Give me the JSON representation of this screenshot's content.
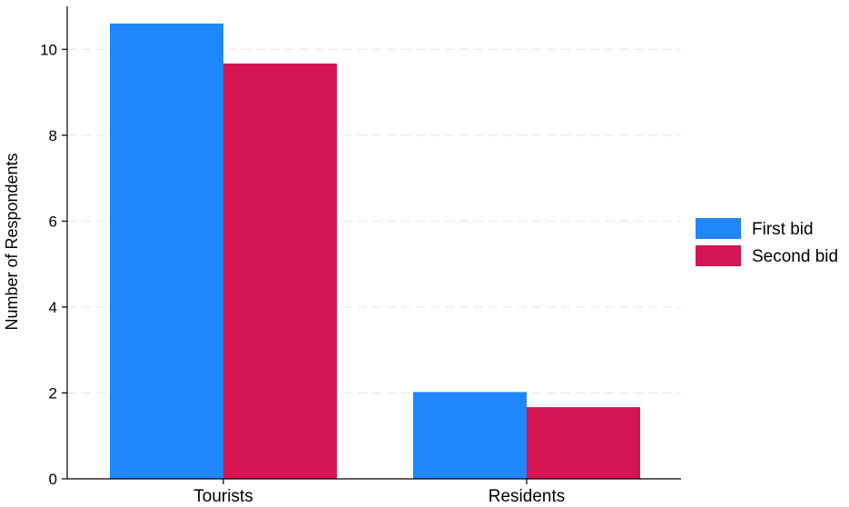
{
  "chart_data": {
    "type": "bar",
    "categories": [
      "Tourists",
      "Residents"
    ],
    "series": [
      {
        "name": "First bid",
        "values": [
          10.6,
          2.02
        ],
        "color": "#1f86fb"
      },
      {
        "name": "Second bid",
        "values": [
          9.67,
          1.67
        ],
        "color": "#d51453"
      }
    ],
    "title": "",
    "xlabel": "",
    "ylabel": "Number of Respondents",
    "ylim": [
      0,
      11
    ],
    "yticks": [
      0,
      2,
      4,
      6,
      8,
      10
    ],
    "grid": true,
    "legend_position": "right"
  }
}
